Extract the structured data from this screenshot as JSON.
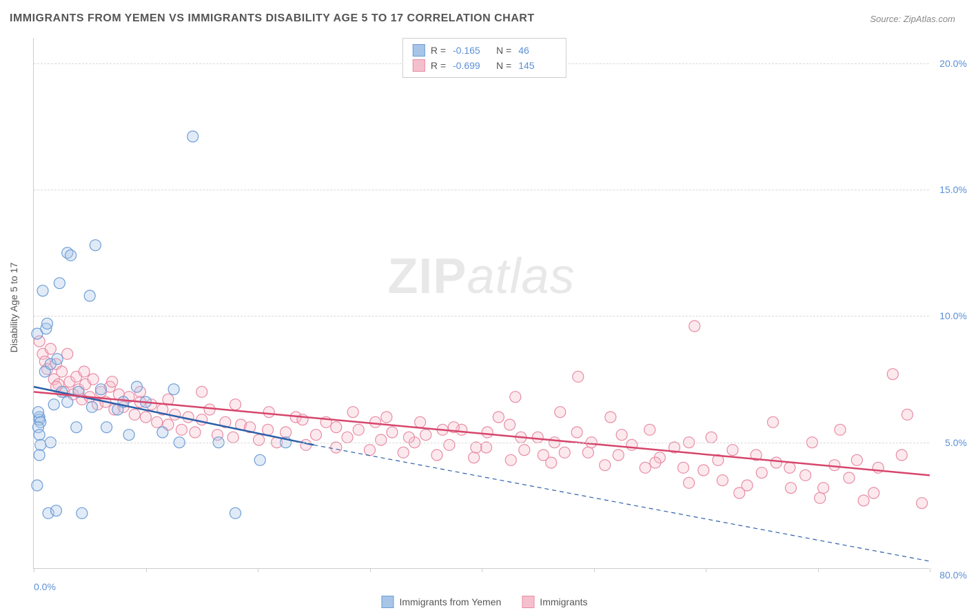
{
  "title": "IMMIGRANTS FROM YEMEN VS IMMIGRANTS DISABILITY AGE 5 TO 17 CORRELATION CHART",
  "source": "Source: ZipAtlas.com",
  "y_axis_label": "Disability Age 5 to 17",
  "watermark_bold": "ZIP",
  "watermark_light": "atlas",
  "chart": {
    "type": "scatter",
    "background_color": "#ffffff",
    "grid_color": "#d8d8d8",
    "axis_color": "#cccccc",
    "tick_label_color": "#5b8fd6",
    "axis_label_color": "#555555",
    "title_color": "#555555",
    "title_fontsize": 16,
    "label_fontsize": 14,
    "xlim": [
      0,
      80
    ],
    "ylim": [
      0,
      21
    ],
    "x_ticks": [
      0,
      10,
      20,
      30,
      40,
      50,
      60,
      70,
      80
    ],
    "x_tick_labels": {
      "0": "0.0%",
      "80": "80.0%"
    },
    "y_ticks": [
      5,
      10,
      15,
      20
    ],
    "y_tick_labels": {
      "5": "5.0%",
      "10": "10.0%",
      "15": "15.0%",
      "20": "20.0%"
    },
    "marker_radius": 8,
    "marker_stroke_width": 1.2,
    "marker_fill_opacity": 0.35,
    "trend_line_width": 2.5,
    "trend_dash_pattern": "6,5",
    "series": [
      {
        "name": "Immigrants from Yemen",
        "color_fill": "#a8c5e8",
        "color_stroke": "#6d9dd6",
        "trend_color": "#2b5fa8",
        "R": "-0.165",
        "N": "46",
        "trend_solid": {
          "x1": 0,
          "y1": 7.2,
          "x2": 25,
          "y2": 4.9
        },
        "trend_dash": {
          "x1": 25,
          "y1": 4.9,
          "x2": 80,
          "y2": 0.3
        },
        "points": [
          [
            0.3,
            9.3
          ],
          [
            0.5,
            6.0
          ],
          [
            0.5,
            5.9
          ],
          [
            0.4,
            6.2
          ],
          [
            0.6,
            5.8
          ],
          [
            0.4,
            5.6
          ],
          [
            0.5,
            5.3
          ],
          [
            0.6,
            4.9
          ],
          [
            0.5,
            4.5
          ],
          [
            0.3,
            3.3
          ],
          [
            0.8,
            11.0
          ],
          [
            1.0,
            7.8
          ],
          [
            1.1,
            9.5
          ],
          [
            1.2,
            9.7
          ],
          [
            1.5,
            8.1
          ],
          [
            1.8,
            6.5
          ],
          [
            1.5,
            5.0
          ],
          [
            1.3,
            2.2
          ],
          [
            2.0,
            2.3
          ],
          [
            2.1,
            8.3
          ],
          [
            2.3,
            11.3
          ],
          [
            2.5,
            7.0
          ],
          [
            3.0,
            12.5
          ],
          [
            3.0,
            6.6
          ],
          [
            3.3,
            12.4
          ],
          [
            3.8,
            5.6
          ],
          [
            4.0,
            7.0
          ],
          [
            4.3,
            2.2
          ],
          [
            5.0,
            10.8
          ],
          [
            5.2,
            6.4
          ],
          [
            5.5,
            12.8
          ],
          [
            6.0,
            7.1
          ],
          [
            6.5,
            5.6
          ],
          [
            7.5,
            6.3
          ],
          [
            8.0,
            6.6
          ],
          [
            8.5,
            5.3
          ],
          [
            9.2,
            7.2
          ],
          [
            10.0,
            6.6
          ],
          [
            11.5,
            5.4
          ],
          [
            12.5,
            7.1
          ],
          [
            13.0,
            5.0
          ],
          [
            14.2,
            17.1
          ],
          [
            16.5,
            5.0
          ],
          [
            18.0,
            2.2
          ],
          [
            20.2,
            4.3
          ],
          [
            22.5,
            5.0
          ]
        ]
      },
      {
        "name": "Immigrants",
        "color_fill": "#f5c0cd",
        "color_stroke": "#e88ba3",
        "trend_color": "#d6456b",
        "R": "-0.699",
        "N": "145",
        "trend_solid": {
          "x1": 0,
          "y1": 7.0,
          "x2": 80,
          "y2": 3.7
        },
        "trend_dash": null,
        "points": [
          [
            0.5,
            9.0
          ],
          [
            0.8,
            8.5
          ],
          [
            1.0,
            8.2
          ],
          [
            1.2,
            7.9
          ],
          [
            1.5,
            8.7
          ],
          [
            1.8,
            7.5
          ],
          [
            2.0,
            8.1
          ],
          [
            2.2,
            7.3
          ],
          [
            2.5,
            7.8
          ],
          [
            2.7,
            7.0
          ],
          [
            3.0,
            8.5
          ],
          [
            3.2,
            7.4
          ],
          [
            3.5,
            6.9
          ],
          [
            3.8,
            7.6
          ],
          [
            4.0,
            7.1
          ],
          [
            4.3,
            6.7
          ],
          [
            4.6,
            7.3
          ],
          [
            5.0,
            6.8
          ],
          [
            5.3,
            7.5
          ],
          [
            5.7,
            6.5
          ],
          [
            6.0,
            7.0
          ],
          [
            6.4,
            6.6
          ],
          [
            6.8,
            7.2
          ],
          [
            7.2,
            6.3
          ],
          [
            7.6,
            6.9
          ],
          [
            8.0,
            6.4
          ],
          [
            8.5,
            6.8
          ],
          [
            9.0,
            6.1
          ],
          [
            9.5,
            6.6
          ],
          [
            10.0,
            6.0
          ],
          [
            10.5,
            6.5
          ],
          [
            11.0,
            5.8
          ],
          [
            11.5,
            6.3
          ],
          [
            12.0,
            5.7
          ],
          [
            12.6,
            6.1
          ],
          [
            13.2,
            5.5
          ],
          [
            13.8,
            6.0
          ],
          [
            14.4,
            5.4
          ],
          [
            15.0,
            5.9
          ],
          [
            15.7,
            6.3
          ],
          [
            16.4,
            5.3
          ],
          [
            17.1,
            5.8
          ],
          [
            17.8,
            5.2
          ],
          [
            18.5,
            5.7
          ],
          [
            19.3,
            5.6
          ],
          [
            20.1,
            5.1
          ],
          [
            20.9,
            5.5
          ],
          [
            21.7,
            5.0
          ],
          [
            22.5,
            5.4
          ],
          [
            23.4,
            6.0
          ],
          [
            24.3,
            4.9
          ],
          [
            25.2,
            5.3
          ],
          [
            26.1,
            5.8
          ],
          [
            27.0,
            4.8
          ],
          [
            28.0,
            5.2
          ],
          [
            29.0,
            5.5
          ],
          [
            30.0,
            4.7
          ],
          [
            31.0,
            5.1
          ],
          [
            32.0,
            5.4
          ],
          [
            33.0,
            4.6
          ],
          [
            34.0,
            5.0
          ],
          [
            35.0,
            5.3
          ],
          [
            36.0,
            4.5
          ],
          [
            37.1,
            4.9
          ],
          [
            38.2,
            5.5
          ],
          [
            39.3,
            4.4
          ],
          [
            40.4,
            4.8
          ],
          [
            41.5,
            6.0
          ],
          [
            42.6,
            4.3
          ],
          [
            43.8,
            4.7
          ],
          [
            45.0,
            5.2
          ],
          [
            46.2,
            4.2
          ],
          [
            47.4,
            4.6
          ],
          [
            48.6,
            7.6
          ],
          [
            49.8,
            5.0
          ],
          [
            51.0,
            4.1
          ],
          [
            52.2,
            4.5
          ],
          [
            53.4,
            4.9
          ],
          [
            54.6,
            4.0
          ],
          [
            55.9,
            4.4
          ],
          [
            57.2,
            4.8
          ],
          [
            58.5,
            3.4
          ],
          [
            59.0,
            9.6
          ],
          [
            59.8,
            3.9
          ],
          [
            61.1,
            4.3
          ],
          [
            62.4,
            4.7
          ],
          [
            63.7,
            3.3
          ],
          [
            65.0,
            3.8
          ],
          [
            66.3,
            4.2
          ],
          [
            67.6,
            3.2
          ],
          [
            68.9,
            3.7
          ],
          [
            70.2,
            2.8
          ],
          [
            71.5,
            4.1
          ],
          [
            72.8,
            3.6
          ],
          [
            74.1,
            2.7
          ],
          [
            75.4,
            4.0
          ],
          [
            76.7,
            7.7
          ],
          [
            78.0,
            6.1
          ],
          [
            79.3,
            2.6
          ],
          [
            43.0,
            6.8
          ],
          [
            47.0,
            6.2
          ],
          [
            51.5,
            6.0
          ],
          [
            55.0,
            5.5
          ],
          [
            58.0,
            4.0
          ],
          [
            60.5,
            5.2
          ],
          [
            63.0,
            3.0
          ],
          [
            66.0,
            5.8
          ],
          [
            69.5,
            5.0
          ],
          [
            72.0,
            5.5
          ],
          [
            75.0,
            3.0
          ],
          [
            77.5,
            4.5
          ],
          [
            28.5,
            6.2
          ],
          [
            31.5,
            6.0
          ],
          [
            34.5,
            5.8
          ],
          [
            37.5,
            5.6
          ],
          [
            40.5,
            5.4
          ],
          [
            43.5,
            5.2
          ],
          [
            46.5,
            5.0
          ],
          [
            49.5,
            4.6
          ],
          [
            52.5,
            5.3
          ],
          [
            55.5,
            4.2
          ],
          [
            58.5,
            5.0
          ],
          [
            61.5,
            3.5
          ],
          [
            64.5,
            4.5
          ],
          [
            67.5,
            4.0
          ],
          [
            70.5,
            3.2
          ],
          [
            73.5,
            4.3
          ],
          [
            15.0,
            7.0
          ],
          [
            18.0,
            6.5
          ],
          [
            21.0,
            6.2
          ],
          [
            24.0,
            5.9
          ],
          [
            27.0,
            5.6
          ],
          [
            30.5,
            5.8
          ],
          [
            33.5,
            5.2
          ],
          [
            36.5,
            5.5
          ],
          [
            39.5,
            4.8
          ],
          [
            42.5,
            5.7
          ],
          [
            45.5,
            4.5
          ],
          [
            48.5,
            5.4
          ],
          [
            2.0,
            7.2
          ],
          [
            4.5,
            7.8
          ],
          [
            7.0,
            7.4
          ],
          [
            9.5,
            7.0
          ],
          [
            12.0,
            6.7
          ]
        ]
      }
    ]
  },
  "legend": {
    "series1_label": "Immigrants from Yemen",
    "series2_label": "Immigrants"
  },
  "stats_labels": {
    "R": "R =",
    "N": "N ="
  }
}
